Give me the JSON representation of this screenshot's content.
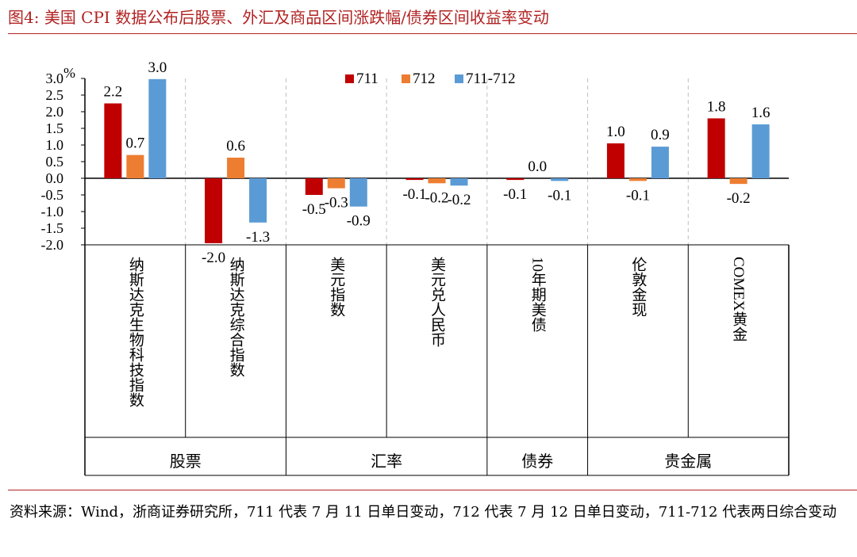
{
  "figure_title": "图4:   美国 CPI 数据公布后股票、外汇及商品区间涨跌幅/债券区间收益率变动",
  "source_note": "资料来源：Wind，浙商证券研究所，711 代表 7 月 11 日单日变动，712 代表 7 月 12 日单日变动，711-712 代表两日综合变动",
  "colors": {
    "s711": "#c00000",
    "s712": "#ed7d31",
    "s711_712": "#5b9bd5",
    "title": "#b22222"
  },
  "chart_data": {
    "type": "bar",
    "ylabel": "%",
    "ylim": [
      -2.0,
      3.0
    ],
    "yticks": [
      "3.0",
      "2.5",
      "2.0",
      "1.5",
      "1.0",
      "0.5",
      "0.0",
      "-0.5",
      "-1.0",
      "-1.5",
      "-2.0"
    ],
    "legend_position": "top-center",
    "categories": [
      "纳斯达克生物科技指数",
      "纳斯达克综合指数",
      "美元指数",
      "美元兑人民币",
      "10年期美债",
      "伦敦金现",
      "COMEX黄金"
    ],
    "groups": [
      {
        "name": "股票",
        "span": [
          0,
          1
        ]
      },
      {
        "name": "汇率",
        "span": [
          2,
          3
        ]
      },
      {
        "name": "债券",
        "span": [
          4,
          4
        ]
      },
      {
        "name": "贵金属",
        "span": [
          5,
          6
        ]
      }
    ],
    "series": [
      {
        "name": "711",
        "values": [
          2.25,
          -1.95,
          -0.5,
          -0.05,
          -0.05,
          1.05,
          1.8
        ],
        "labels": [
          "2.2",
          "-2.0",
          "-0.5",
          "-0.1",
          "-0.1",
          "1.0",
          "1.8"
        ]
      },
      {
        "name": "712",
        "values": [
          0.7,
          0.62,
          -0.3,
          -0.15,
          0.0,
          -0.08,
          -0.17
        ],
        "labels": [
          "0.7",
          "0.6",
          "-0.3",
          "-0.2",
          "0.0",
          "-0.1",
          "-0.2"
        ]
      },
      {
        "name": "711-712",
        "values": [
          2.98,
          -1.33,
          -0.85,
          -0.22,
          -0.08,
          0.95,
          1.62
        ],
        "labels": [
          "3.0",
          "-1.3",
          "-0.9",
          "-0.2",
          "-0.1",
          "0.9",
          "1.6"
        ]
      }
    ]
  }
}
